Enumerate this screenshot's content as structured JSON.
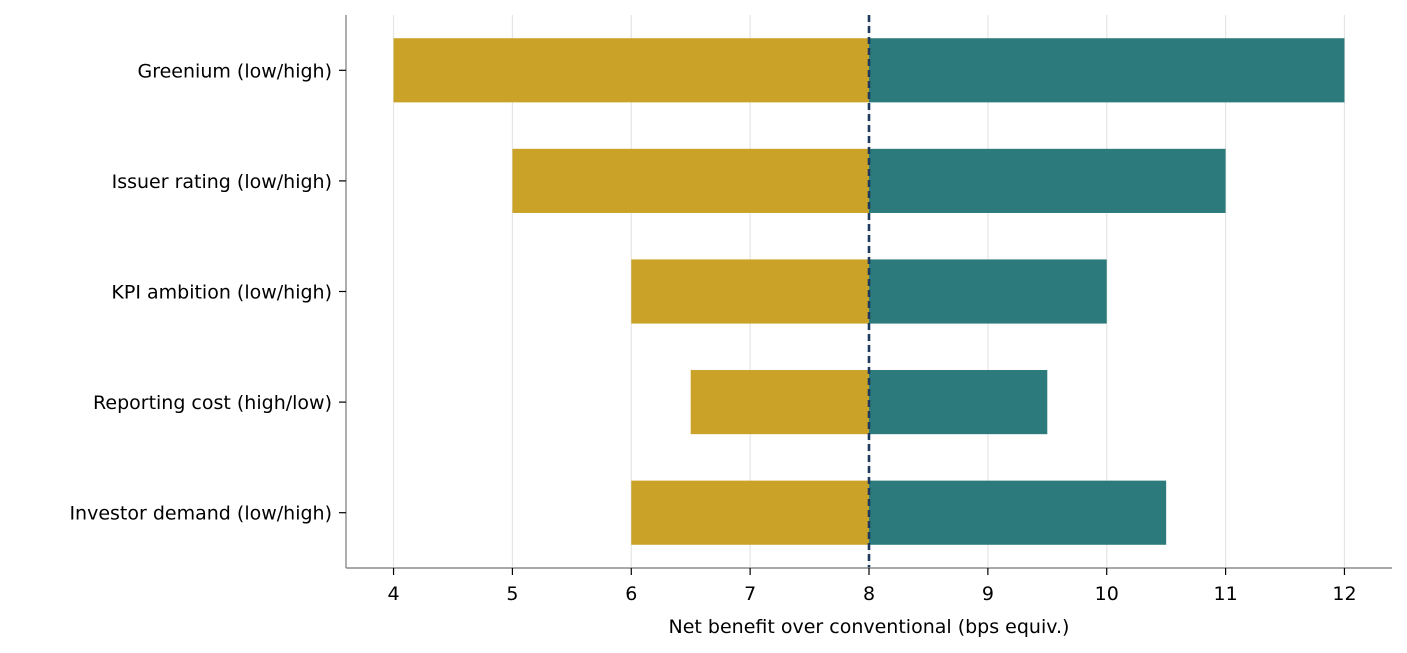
{
  "chart_data": {
    "type": "bar",
    "orientation": "horizontal",
    "subtype": "tornado",
    "title": "",
    "xlabel": "Net benefit over conventional (bps equiv.)",
    "ylabel": "",
    "baseline": 8,
    "xlim": [
      3.6,
      12.4
    ],
    "xticks": [
      4,
      5,
      6,
      7,
      8,
      9,
      10,
      11,
      12
    ],
    "categories": [
      "Greenium (low/high)",
      "Issuer rating (low/high)",
      "KPI ambition (low/high)",
      "Reporting cost (high/low)",
      "Investor demand (low/high)"
    ],
    "low": [
      4,
      5,
      6,
      6.5,
      6
    ],
    "high": [
      12,
      11,
      10,
      9.5,
      10.5
    ],
    "grid": "vertical",
    "legend": "none",
    "colors": {
      "low": "#C9A227",
      "high": "#2C7A7B",
      "baseline": "#1F3A5F",
      "grid": "#E5E5E5",
      "axis": "#8C8C8C"
    }
  }
}
